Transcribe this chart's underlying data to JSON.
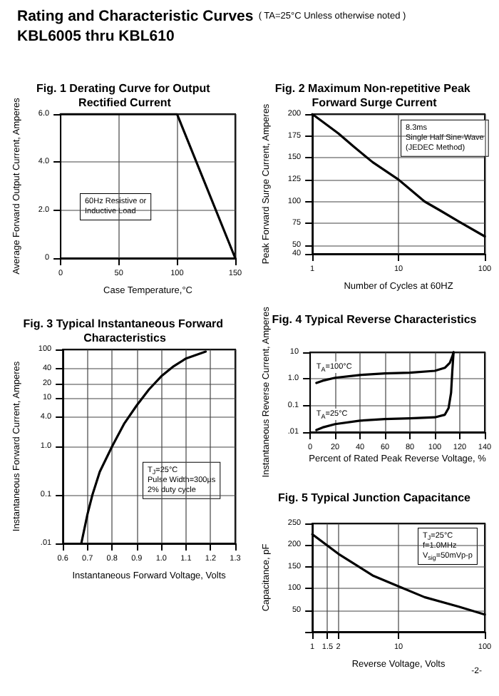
{
  "chart_data": [
    {
      "type": "other",
      "title": "Rating and Characteristic Curves",
      "subtitle": "( TA=25°C Unless otherwise noted )",
      "annotations": [
        "KBL6005 thru KBL610",
        "-2-"
      ]
    },
    {
      "type": "line",
      "title": "Fig. 1 Derating Curve for Output Rectified Current",
      "xlabel": "Case Temperature,°C",
      "ylabel": "Average Forward Output Current, Amperes",
      "x": [
        0,
        100,
        150
      ],
      "series": [
        {
          "color": "#000000",
          "values": [
            6,
            6,
            0
          ]
        }
      ],
      "xlim": [
        0,
        150
      ],
      "xticks": [
        0,
        50,
        100,
        150
      ],
      "ylim": [
        0,
        6
      ],
      "yticks": [
        0,
        {
          "value": 2,
          "label": "2.0"
        },
        {
          "value": 4,
          "label": "4.0"
        },
        {
          "value": 6,
          "label": "6.0"
        }
      ],
      "annotations": [
        "60Hz Resistive or",
        "Inductive Load"
      ],
      "grid": true,
      "marker": "none",
      "line_style": "solid"
    },
    {
      "type": "line",
      "title": "Fig. 2 Maximum Non-repetitive Peak Forward Surge Current",
      "xlabel": "Number of Cycles at 60HZ",
      "ylabel": "Peak Forward Surge Current, Amperes",
      "x": [
        1,
        2,
        3,
        5,
        10,
        20,
        30,
        50,
        100
      ],
      "series": [
        {
          "color": "#000000",
          "values": [
            200,
            178,
            163,
            145,
            125,
            100,
            90,
            77,
            60
          ]
        }
      ],
      "xlim": [
        1,
        100
      ],
      "xticks": [
        1,
        10,
        100
      ],
      "ylim": [
        40,
        200
      ],
      "yticks": [
        40,
        50,
        75,
        100,
        125,
        150,
        175,
        200
      ],
      "log": "x",
      "annotations": [
        "8.3ms",
        "Single Half Sine-Wave",
        "(JEDEC Method)"
      ],
      "grid": true,
      "marker": "none",
      "line_style": "solid"
    },
    {
      "type": "line",
      "title": "Fig. 3 Typical Instantaneous Forward Characteristics",
      "xlabel": "Instantaneous Forward Voltage, Volts",
      "ylabel": "Instantaneous Forward Current, Amperes",
      "x": [
        0.675,
        0.7,
        0.72,
        0.75,
        0.8,
        0.85,
        0.9,
        0.95,
        1.0,
        1.05,
        1.1,
        1.18
      ],
      "series": [
        {
          "color": "#000000",
          "values": [
            0.01,
            0.04,
            0.1,
            0.3,
            1,
            3,
            7,
            15,
            28,
            45,
            65,
            90
          ]
        }
      ],
      "xlim": [
        0.6,
        1.3
      ],
      "xticks": [
        0.6,
        0.7,
        0.8,
        0.9,
        {
          "value": 1,
          "label": "1.0"
        },
        1.1,
        1.2,
        1.3
      ],
      "ylim": [
        0.01,
        100
      ],
      "yticks": [
        {
          "value": 0.01,
          "label": ".01"
        },
        0.1,
        {
          "value": 1,
          "label": "1.0"
        },
        {
          "value": 4,
          "label": "4.0"
        },
        10,
        20,
        40,
        100
      ],
      "log": "y",
      "annotations": [
        "T$_{J}$=25°C",
        "Pulse Width=300μs",
        "2% duty cycle"
      ],
      "grid": true,
      "marker": "none",
      "line_style": "solid"
    },
    {
      "type": "line",
      "title": "Fig. 4 Typical Reverse Characteristics",
      "xlabel": "Percent of Rated Peak Reverse Voltage, %",
      "ylabel": "Instantaneous Reverse Current, Amperes",
      "series": [
        {
          "name": "T$_{A}$=100°C",
          "color": "#000000",
          "x": [
            5,
            10,
            20,
            40,
            60,
            80,
            100,
            108,
            112,
            114,
            115
          ],
          "values": [
            0.7,
            0.85,
            1.1,
            1.4,
            1.6,
            1.7,
            2.0,
            2.6,
            4,
            7,
            10
          ]
        },
        {
          "name": "T$_{A}$=25°C",
          "color": "#000000",
          "x": [
            5,
            10,
            20,
            40,
            60,
            80,
            100,
            108,
            111,
            113,
            114,
            115
          ],
          "values": [
            0.012,
            0.015,
            0.02,
            0.027,
            0.031,
            0.033,
            0.036,
            0.045,
            0.08,
            0.3,
            2,
            10
          ]
        }
      ],
      "xlim": [
        0,
        140
      ],
      "xticks": [
        0,
        20,
        40,
        60,
        80,
        100,
        120,
        140
      ],
      "ylim": [
        0.01,
        10
      ],
      "yticks": [
        {
          "value": 0.01,
          "label": ".01"
        },
        0.1,
        {
          "value": 1,
          "label": "1.0"
        },
        10
      ],
      "log": "y",
      "grid": true,
      "marker": "none",
      "line_style": "solid"
    },
    {
      "type": "line",
      "title": "Fig. 5 Typical Junction Capacitance",
      "xlabel": "Reverse Voltage, Volts",
      "ylabel": "Capacitance, pF",
      "x": [
        1,
        2,
        5,
        10,
        20,
        50,
        100
      ],
      "series": [
        {
          "color": "#000000",
          "values": [
            225,
            180,
            130,
            105,
            80,
            58,
            40
          ]
        }
      ],
      "xlim": [
        1,
        100
      ],
      "xticks": [
        1,
        1.5,
        2,
        10,
        100
      ],
      "ylim": [
        0,
        250
      ],
      "yticks": [
        {
          "value": 0,
          "label": null
        },
        50,
        100,
        150,
        200,
        250
      ],
      "log": "x",
      "annotations": [
        "T$_{J}$=25°C",
        "f=1.0MHz",
        "V$_{sig}$=50mVp-p"
      ],
      "grid": true,
      "marker": "none",
      "line_style": "solid"
    }
  ]
}
